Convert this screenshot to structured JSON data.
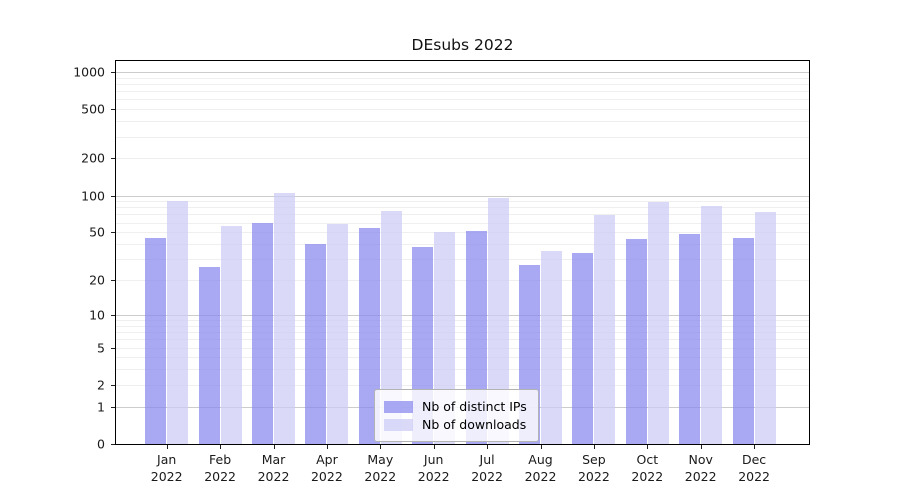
{
  "chart_data": {
    "type": "bar",
    "title": "DEsubs 2022",
    "categories": [
      "Jan",
      "Feb",
      "Mar",
      "Apr",
      "May",
      "Jun",
      "Jul",
      "Aug",
      "Sep",
      "Oct",
      "Nov",
      "Dec"
    ],
    "year_label": "2022",
    "series": [
      {
        "name": "Nb of distinct IPs",
        "color": "#8888ee",
        "values": [
          45,
          26,
          60,
          40,
          54,
          38,
          51,
          27,
          34,
          44,
          48,
          45
        ]
      },
      {
        "name": "Nb of downloads",
        "color": "#ccccf5",
        "values": [
          90,
          56,
          104,
          59,
          75,
          50,
          95,
          35,
          69,
          88,
          82,
          73
        ]
      }
    ],
    "yticks": [
      0,
      1,
      2,
      5,
      10,
      20,
      50,
      100,
      200,
      500,
      1000
    ],
    "yscale": "log1p",
    "ylim": [
      0,
      1280
    ],
    "grid": "both",
    "legend_position": "lower center",
    "colors": {
      "major_grid": "#cccccc",
      "minor_grid": "#efefef",
      "axis": "#000000",
      "text": "#1a1a1a"
    }
  }
}
